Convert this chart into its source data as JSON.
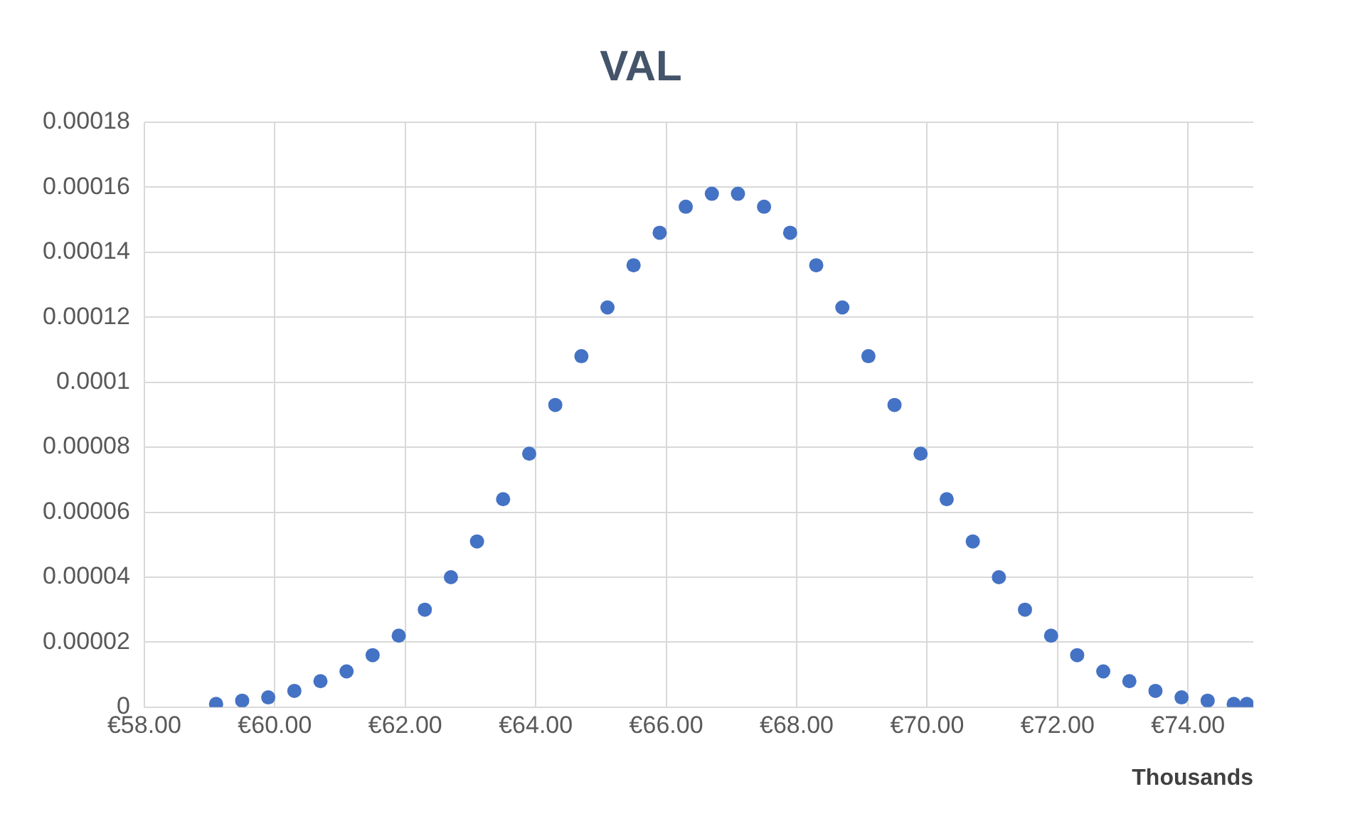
{
  "chart_data": {
    "type": "scatter",
    "title": "VAL",
    "xlabel": "Thousands",
    "x": [
      59.1,
      59.5,
      59.9,
      60.3,
      60.7,
      61.1,
      61.5,
      61.9,
      62.3,
      62.7,
      63.1,
      63.5,
      63.9,
      64.3,
      64.7,
      65.1,
      65.5,
      65.9,
      66.3,
      66.7,
      67.1,
      67.5,
      67.9,
      68.3,
      68.7,
      69.1,
      69.5,
      69.9,
      70.3,
      70.7,
      71.1,
      71.5,
      71.9,
      72.3,
      72.7,
      73.1,
      73.5,
      73.9,
      74.3,
      74.7,
      74.9
    ],
    "series": [
      {
        "color": "#4472c4",
        "values": [
          1e-06,
          2e-06,
          3e-06,
          5e-06,
          8e-06,
          1.1e-05,
          1.6e-05,
          2.2e-05,
          3e-05,
          4e-05,
          5.1e-05,
          6.4e-05,
          7.8e-05,
          9.3e-05,
          0.000108,
          0.000123,
          0.000136,
          0.000146,
          0.000154,
          0.000158,
          0.000158,
          0.000154,
          0.000146,
          0.000136,
          0.000123,
          0.000108,
          9.3e-05,
          7.8e-05,
          6.4e-05,
          5.1e-05,
          4e-05,
          3e-05,
          2.2e-05,
          1.6e-05,
          1.1e-05,
          8e-06,
          5e-06,
          3e-06,
          2e-06,
          1e-06,
          1e-06
        ]
      }
    ],
    "xlim": [
      58,
      75
    ],
    "xticks": [
      {
        "value": 58,
        "label": "€58.00"
      },
      {
        "value": 60,
        "label": "€60.00"
      },
      {
        "value": 62,
        "label": "€62.00"
      },
      {
        "value": 64,
        "label": "€64.00"
      },
      {
        "value": 66,
        "label": "€66.00"
      },
      {
        "value": 68,
        "label": "€68.00"
      },
      {
        "value": 70,
        "label": "€70.00"
      },
      {
        "value": 72,
        "label": "€72.00"
      },
      {
        "value": 74,
        "label": "€74.00"
      }
    ],
    "ylim": [
      0,
      0.00018
    ],
    "yticks": [
      0,
      {
        "value": 2e-05,
        "label": "0.00002"
      },
      {
        "value": 4e-05,
        "label": "0.00004"
      },
      {
        "value": 6e-05,
        "label": "0.00006"
      },
      {
        "value": 8e-05,
        "label": "0.00008"
      },
      0.0001,
      0.00012,
      0.00014,
      0.00016,
      0.00018
    ],
    "grid": true,
    "marker": "circle"
  }
}
